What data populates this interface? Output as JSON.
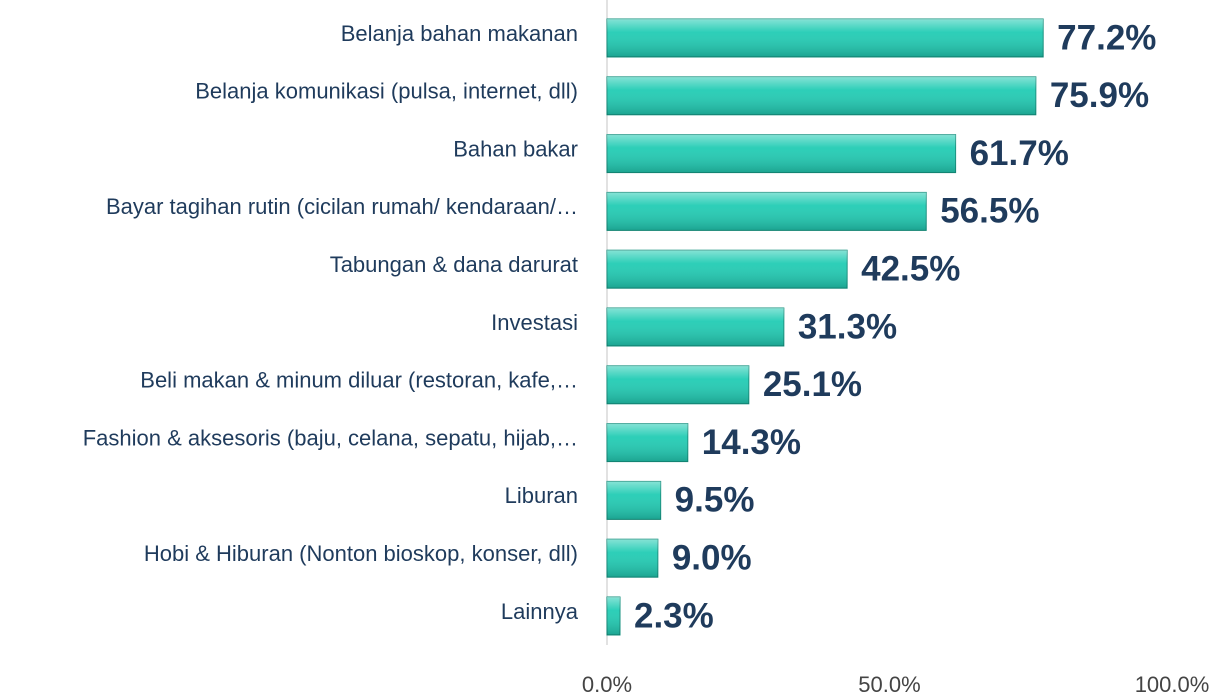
{
  "chart_data": {
    "type": "hbar",
    "categories": [
      "Belanja bahan makanan",
      "Belanja komunikasi (pulsa, internet, dll)",
      "Bahan bakar",
      "Bayar tagihan rutin (cicilan rumah/ kendaraan/…",
      "Tabungan & dana darurat",
      "Investasi",
      "Beli makan & minum diluar (restoran, kafe,…",
      "Fashion & aksesoris (baju, celana, sepatu, hijab,…",
      "Liburan",
      "Hobi & Hiburan (Nonton bioskop, konser, dll)",
      "Lainnya"
    ],
    "values": [
      77.2,
      75.9,
      61.7,
      56.5,
      42.5,
      31.3,
      25.1,
      14.3,
      9.5,
      9.0,
      2.3
    ],
    "value_labels": [
      "77.2%",
      "75.9%",
      "61.7%",
      "56.5%",
      "42.5%",
      "31.3%",
      "25.1%",
      "14.3%",
      "9.5%",
      "9.0%",
      "2.3%"
    ],
    "color": "#22ccb4",
    "xlim": [
      0,
      100
    ],
    "xticks": [
      {
        "value": 0,
        "label": "0.0%"
      },
      {
        "value": 50,
        "label": "50.0%"
      },
      {
        "value": 100,
        "label": "100.0%"
      }
    ]
  }
}
